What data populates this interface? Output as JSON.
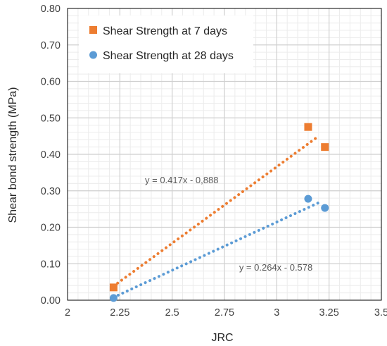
{
  "chart_data": {
    "type": "scatter",
    "title": "",
    "xlabel": "JRC",
    "ylabel": "Shear bond strength (MPa)",
    "xlim": [
      2,
      3.5
    ],
    "ylim": [
      0,
      0.8
    ],
    "x_ticks": [
      "2",
      "2.25",
      "2.5",
      "2.75",
      "3",
      "3.25",
      "3.5"
    ],
    "y_ticks": [
      "0.00",
      "0.10",
      "0.20",
      "0.30",
      "0.40",
      "0.50",
      "0.60",
      "0.70",
      "0.80"
    ],
    "grid": true,
    "minor_grid": true,
    "legend_position": "top-left",
    "series": [
      {
        "name": "Shear Strength at 7 days",
        "marker": "square",
        "color": "#ED7D31",
        "x": [
          2.22,
          3.15,
          3.23
        ],
        "y": [
          0.035,
          0.475,
          0.42
        ],
        "trendline": {
          "type": "linear",
          "x_range": [
            2.22,
            3.2
          ],
          "equation": "y = 0.417x - 0,888"
        }
      },
      {
        "name": "Shear Strength at 28 days",
        "marker": "circle",
        "color": "#5B9BD5",
        "x": [
          2.22,
          3.15,
          3.23
        ],
        "y": [
          0.006,
          0.278,
          0.253
        ],
        "trendline": {
          "type": "linear",
          "x_range": [
            2.22,
            3.2
          ],
          "equation": "y = 0.264x - 0.578"
        }
      }
    ]
  }
}
